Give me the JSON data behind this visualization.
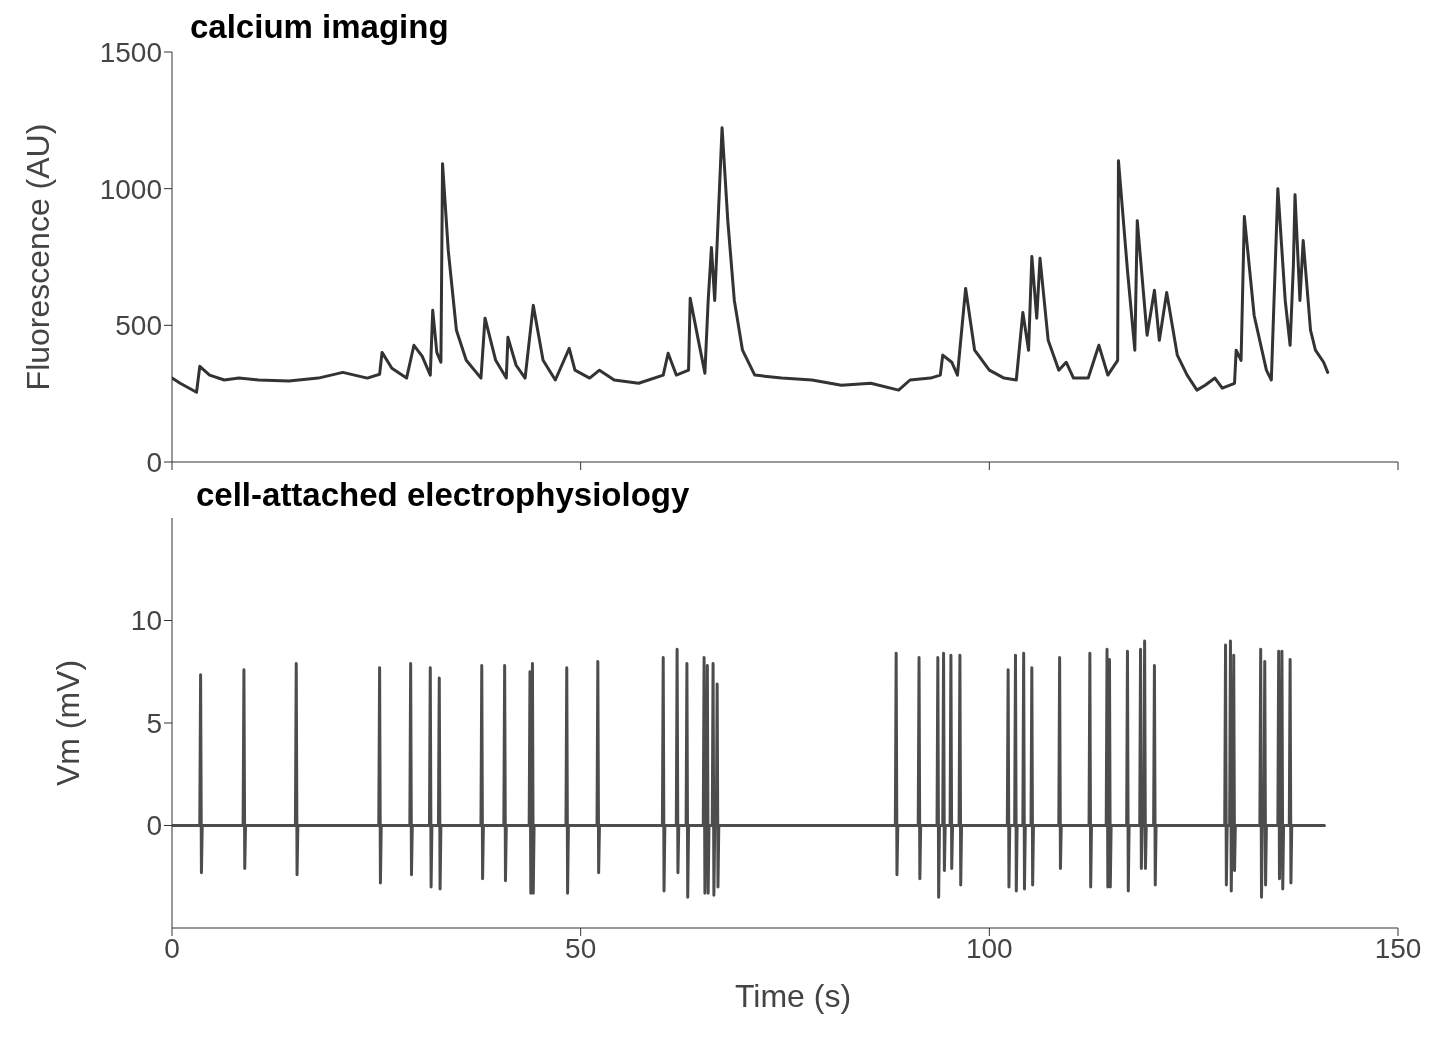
{
  "chart_data": [
    {
      "type": "line",
      "title": "calcium imaging",
      "ylabel": "Fluorescence (AU)",
      "xlim": [
        0,
        150
      ],
      "xticks": [
        0,
        50,
        100,
        150
      ],
      "ylim": [
        0,
        1500
      ],
      "yticks": [
        0,
        500,
        1000,
        1500
      ],
      "tick_labels": "y",
      "marker": "none",
      "color": "#333333",
      "x": [
        0,
        1,
        3,
        3.4,
        4.6,
        6.4,
        8.2,
        10.6,
        14.3,
        17.9,
        20.9,
        23.9,
        25.4,
        25.7,
        26.9,
        28.7,
        29.6,
        30.6,
        31.6,
        31.9,
        32.4,
        32.9,
        33.1,
        33.8,
        34.8,
        36,
        37.8,
        38.3,
        39.6,
        40.9,
        41.1,
        42.1,
        43.2,
        44.2,
        45.4,
        46.9,
        48.6,
        49.3,
        51.1,
        52.3,
        54.1,
        57.1,
        60.1,
        60.7,
        61.7,
        63.2,
        63.4,
        64.4,
        65.2,
        65.6,
        66,
        66.4,
        67.3,
        68,
        68.8,
        69.8,
        71.3,
        74.6,
        78.3,
        81.9,
        85.5,
        88.9,
        90.3,
        92.8,
        94,
        94.3,
        95.4,
        96.1,
        97.1,
        98.2,
        100,
        101.8,
        103.3,
        104.1,
        104.8,
        105.2,
        105.8,
        106.2,
        107.2,
        108.5,
        109.4,
        110.3,
        112.1,
        113.4,
        114.5,
        115.7,
        115.8,
        116.9,
        117.8,
        118.1,
        119.3,
        120.2,
        120.8,
        121.7,
        123,
        124.2,
        125.4,
        126.4,
        127.6,
        128.5,
        130,
        130.2,
        130.8,
        131.2,
        132.4,
        133.9,
        134.5,
        135,
        135.3,
        136.2,
        136.8,
        137.2,
        137.4,
        138,
        138.4,
        139.3,
        139.9,
        140.9,
        141.4
      ],
      "values": [
        307,
        288,
        255,
        350,
        318,
        300,
        307,
        300,
        296,
        307,
        328,
        307,
        321,
        401,
        343,
        307,
        427,
        387,
        318,
        555,
        401,
        365,
        1091,
        774,
        482,
        372,
        307,
        526,
        372,
        307,
        456,
        354,
        307,
        573,
        372,
        300,
        416,
        336,
        307,
        336,
        300,
        288,
        318,
        398,
        318,
        336,
        599,
        445,
        325,
        591,
        785,
        591,
        1223,
        883,
        591,
        409,
        318,
        307,
        300,
        281,
        288,
        263,
        300,
        307,
        318,
        391,
        365,
        318,
        635,
        409,
        336,
        307,
        300,
        547,
        409,
        752,
        526,
        745,
        445,
        336,
        365,
        307,
        307,
        427,
        318,
        372,
        1102,
        701,
        409,
        883,
        464,
        628,
        445,
        620,
        391,
        318,
        263,
        281,
        307,
        270,
        288,
        409,
        372,
        898,
        536,
        336,
        300,
        737,
        1000,
        591,
        427,
        719,
        978,
        591,
        810,
        482,
        409,
        365,
        328
      ]
    },
    {
      "type": "line",
      "title": "cell-attached electrophysiology",
      "xlabel": "Time (s)",
      "ylabel": "Vm (mV)",
      "xlim": [
        0,
        150
      ],
      "xticks": [
        0,
        50,
        100,
        150
      ],
      "ylim": [
        -5,
        15
      ],
      "yticks": [
        0,
        5,
        10
      ],
      "marker": "none",
      "color": "#4d4d4d",
      "x": [
        0,
        3.4,
        3.5,
        3.6,
        3.7,
        8.7,
        8.8,
        8.9,
        9,
        15.1,
        15.2,
        15.3,
        15.4,
        25.3,
        25.4,
        25.5,
        25.6,
        29.1,
        29.2,
        29.3,
        29.4,
        31.5,
        31.6,
        31.7,
        31.8,
        32.6,
        32.7,
        32.8,
        32.9,
        37.8,
        37.9,
        38,
        38.1,
        40.6,
        40.7,
        40.8,
        40.9,
        43.7,
        43.8,
        43.9,
        44,
        44,
        44.1,
        44.2,
        44.3,
        48.2,
        48.3,
        48.4,
        48.5,
        52,
        52.1,
        52.2,
        52.3,
        60,
        60.1,
        60.2,
        60.3,
        61.7,
        61.8,
        61.9,
        62,
        62.9,
        63,
        63.1,
        63.2,
        65,
        65.1,
        65.2,
        65.3,
        65.4,
        65.5,
        65.6,
        65.7,
        66.1,
        66.2,
        66.3,
        66.4,
        66.6,
        66.7,
        66.8,
        66.9,
        88.5,
        88.6,
        88.7,
        88.8,
        91.3,
        91.4,
        91.5,
        91.6,
        93.6,
        93.7,
        93.8,
        93.9,
        94.3,
        94.4,
        94.5,
        94.6,
        95.2,
        95.3,
        95.4,
        95.5,
        96.3,
        96.4,
        96.5,
        96.6,
        102.2,
        102.3,
        102.4,
        102.5,
        103.1,
        103.2,
        103.3,
        103.4,
        104.1,
        104.2,
        104.3,
        104.4,
        105.1,
        105.2,
        105.3,
        105.4,
        108.5,
        108.6,
        108.7,
        108.8,
        112.2,
        112.3,
        112.4,
        112.5,
        114.3,
        114.4,
        114.5,
        114.6,
        114.6,
        114.7,
        114.8,
        114.9,
        116.8,
        116.9,
        117,
        117.1,
        118.4,
        118.5,
        118.6,
        118.7,
        118.9,
        119,
        119.1,
        119.2,
        120.1,
        120.2,
        120.3,
        120.4,
        128.8,
        128.9,
        129,
        129.1,
        129.4,
        129.5,
        129.6,
        129.7,
        129.8,
        129.9,
        130,
        130.1,
        133.1,
        133.2,
        133.3,
        133.4,
        133.6,
        133.7,
        133.8,
        133.9,
        135.3,
        135.4,
        135.5,
        135.6,
        135.7,
        135.8,
        135.9,
        136,
        136.7,
        136.8,
        136.9,
        137,
        141
      ],
      "values": [
        0,
        0,
        7.35,
        -2.3,
        0,
        0,
        7.6,
        -2.1,
        0,
        0,
        7.9,
        -2.4,
        0,
        0,
        7.7,
        -2.8,
        0,
        0,
        7.9,
        -2.4,
        0,
        0,
        7.7,
        -3,
        0,
        0,
        7.2,
        -3.1,
        0,
        0,
        7.8,
        -2.6,
        0,
        0,
        7.8,
        -2.7,
        0,
        0,
        7.5,
        -3.3,
        0,
        0,
        7.9,
        -3.3,
        0,
        0,
        7.7,
        -3.3,
        0,
        0,
        8,
        -2.3,
        0,
        0,
        8.2,
        -3.2,
        0,
        0,
        8.6,
        -2.3,
        0,
        0,
        7.9,
        -3.5,
        0,
        0,
        8.2,
        -3.3,
        0,
        0,
        7.8,
        -3.3,
        0,
        0,
        7.9,
        -3.4,
        0,
        0,
        6.9,
        -3,
        0,
        0,
        8.4,
        -2.4,
        0,
        0,
        8.2,
        -2.6,
        0,
        0,
        8.2,
        -3.5,
        0,
        0,
        8.4,
        -2.2,
        0,
        0,
        8.3,
        -2.1,
        0,
        0,
        8.3,
        -2.9,
        0,
        0,
        7.6,
        -3,
        0,
        0,
        8.3,
        -3.2,
        0,
        0,
        8.4,
        -3.1,
        0,
        0,
        7.7,
        -2.9,
        0,
        0,
        8.2,
        -2.1,
        0,
        0,
        8.4,
        -3,
        0,
        0,
        8.6,
        -3,
        0,
        0,
        8.1,
        -3,
        0,
        0,
        8.5,
        -3.2,
        0,
        0,
        8.6,
        -2.1,
        0,
        0,
        9,
        -2.1,
        0,
        0,
        7.8,
        -2.9,
        0,
        0,
        8.8,
        -2.9,
        0,
        0,
        9,
        -3.2,
        0,
        0,
        8.3,
        -2.2,
        0,
        0,
        8.6,
        -3.5,
        0,
        0,
        8,
        -2.9,
        0,
        0,
        8.5,
        -2.6,
        0,
        0,
        8.5,
        -3.1,
        0,
        0,
        8.1,
        -2.8,
        0,
        0
      ]
    }
  ]
}
